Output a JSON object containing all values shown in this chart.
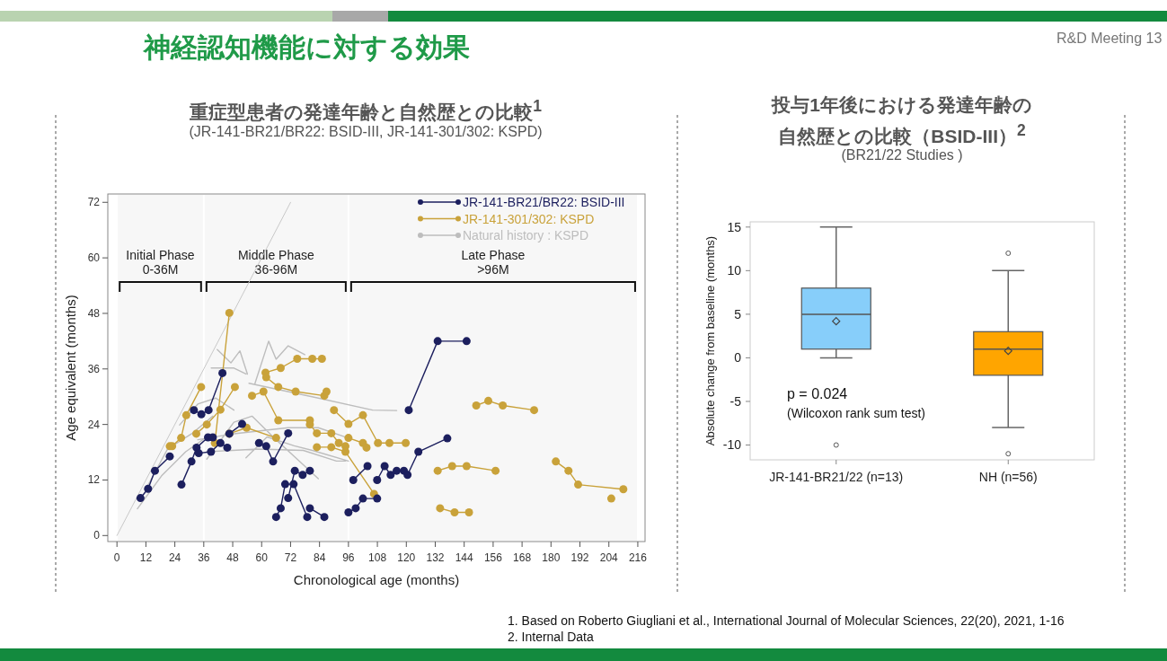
{
  "chart_data": [
    {
      "type": "line",
      "title": "重症型患者の発達年齢と自然歴との比較$^{1}$",
      "subtitle": "(JR-141-BR21/BR22: BSID-III, JR-141-301/302: KSPD)",
      "xlabel": "Chronological age (months)",
      "ylabel": "Age equivalent (months)",
      "xlim": [
        -3.8,
        219
      ],
      "ylim": [
        -1.3,
        73.8
      ],
      "xticks": [
        0,
        12,
        24,
        36,
        48,
        60,
        72,
        84,
        96,
        108,
        120,
        132,
        144,
        156,
        168,
        180,
        192,
        204,
        216
      ],
      "yticks": [
        0,
        12,
        24,
        36,
        48,
        60,
        72
      ],
      "grid": false,
      "legend": "top right",
      "marker": "circle",
      "series": [
        {
          "color": "#c8c8c8",
          "marker": "none",
          "x": [
            0,
            72
          ],
          "values": [
            0,
            72
          ]
        },
        {
          "name": "Natural history : KSPD",
          "color": "#bdbdbd",
          "marker": "none",
          "x": [
            37.25,
            48.5,
            56,
            66,
            83.5,
            null,
            41.6,
            47.25,
            51,
            54.1,
            null,
            39.1,
            48.5,
            53.5,
            null,
            57.25,
            62.9,
            66,
            71,
            77.9,
            null,
            54.75,
            83.5,
            106,
            116,
            null,
            33.5,
            48.5,
            71,
            83.5,
            94.75,
            null,
            37.25,
            58.5,
            77.25,
            91,
            94.75,
            null,
            26,
            33.5,
            41,
            48.5,
            null,
            12.25,
            21,
            31,
            39.75,
            null,
            8.5,
            18.5,
            28.5,
            37.25,
            null,
            53.5,
            62.25,
            73.5,
            81,
            96
          ],
          "values": [
            16.5,
            24.5,
            25.8,
            20.7,
            12.3,
            null,
            40.2,
            37.3,
            39.9,
            34.9,
            null,
            36.2,
            36.2,
            34.9,
            null,
            32.9,
            42.0,
            38.1,
            41.0,
            39.1,
            null,
            32.9,
            29.7,
            27.1,
            27.0,
            null,
            20.7,
            22.0,
            23.3,
            23.3,
            21.3,
            null,
            18.1,
            18.7,
            18.4,
            16.1,
            16.1,
            null,
            23.9,
            28.4,
            29.7,
            27.1,
            null,
            10.3,
            18.7,
            22.0,
            25.8,
            null,
            5.8,
            12.9,
            18.1,
            21.3,
            null,
            16.8,
            21.3,
            19.4,
            18.4,
            16.1
          ]
        },
        {
          "name": "JR-141-301/302: KSPD",
          "color": "#c9a23a",
          "x": [
            21.9,
            22.9,
            26.6,
            28.75,
            34.9,
            null,
            32.9,
            37.25,
            42.9,
            48.9,
            null,
            40.6,
            46.6,
            null,
            46.6,
            53.75,
            66,
            null,
            56,
            60.75,
            66.9,
            80,
            null,
            61.6,
            67.9,
            74.75,
            81,
            85,
            null,
            61.9,
            66.9,
            74.1,
            86,
            86.9,
            null,
            80,
            82.9,
            88.9,
            92,
            94.75,
            null,
            82.9,
            88.9,
            94.75,
            106.6,
            null,
            90,
            96,
            102,
            108.25,
            113,
            119.75,
            null,
            96,
            102,
            103.5,
            null,
            149,
            154,
            160,
            173,
            null,
            133,
            139,
            145,
            157,
            null,
            134,
            140,
            146,
            null,
            182,
            187.25,
            191.25,
            210,
            null,
            205
          ],
          "values": [
            19.3,
            19.3,
            21.1,
            26.0,
            32.1,
            null,
            22.0,
            24.0,
            27.2,
            32.1,
            null,
            20.0,
            48.1,
            null,
            22.0,
            23.3,
            21.1,
            null,
            30.2,
            31.1,
            24.9,
            24.9,
            null,
            35.2,
            36.2,
            38.2,
            38.2,
            38.2,
            null,
            34.2,
            32.1,
            31.1,
            30.2,
            31.1,
            null,
            24.0,
            22.1,
            22.1,
            20.0,
            19.3,
            null,
            19.1,
            19.1,
            18.1,
            9.0,
            null,
            27.1,
            24.1,
            26.0,
            20.0,
            20.0,
            20.0,
            null,
            21.1,
            20.0,
            19.0,
            null,
            28.1,
            29.1,
            28.1,
            27.1,
            null,
            14.0,
            15.0,
            15.0,
            14.0,
            null,
            5.9,
            5.0,
            5.0,
            null,
            16.0,
            14.0,
            11.0,
            10.0,
            null,
            8.0
          ]
        },
        {
          "name": "JR-141-BR21/BR22: BSID-III",
          "color": "#1c1f5e",
          "x": [
            9.75,
            12.9,
            15.75,
            21.9,
            null,
            26.75,
            30.9,
            33,
            37.75,
            39.75,
            null,
            31.9,
            35,
            38,
            43.75,
            null,
            33.9,
            39,
            42.9,
            45.75,
            null,
            46.6,
            51.9,
            null,
            58.9,
            61.9,
            64.75,
            71,
            null,
            66,
            67.9,
            69.75,
            73.25,
            78.9,
            null,
            71,
            73.75,
            77,
            80,
            null,
            80,
            86,
            null,
            96,
            99,
            102,
            107.9,
            null,
            98,
            103.9,
            null,
            107.9,
            111,
            113.5,
            116,
            119,
            null,
            120.5,
            125,
            137,
            null,
            121,
            133,
            145
          ],
          "values": [
            8.1,
            10.1,
            14.0,
            17.1,
            null,
            11.0,
            16.0,
            19.0,
            21.2,
            21.2,
            null,
            27.1,
            26.2,
            27.1,
            35.1,
            null,
            17.8,
            18.1,
            20.0,
            19.0,
            null,
            22.0,
            24.1,
            null,
            20.0,
            19.3,
            16.0,
            22.1,
            null,
            4.0,
            5.9,
            11.1,
            11.1,
            4.0,
            null,
            8.1,
            14.0,
            13.1,
            14.0,
            null,
            5.9,
            4.0,
            null,
            5.0,
            5.9,
            8.0,
            8.0,
            null,
            12.0,
            15.0,
            null,
            12.0,
            15.0,
            13.1,
            14.0,
            14.0,
            null,
            13.1,
            18.1,
            21.0,
            null,
            27.1,
            42.0,
            42.0
          ]
        }
      ],
      "bands": [
        {
          "axis": "x",
          "from": 0,
          "to": 36,
          "label": "Initial Phase 0-36M"
        },
        {
          "axis": "x",
          "from": 36,
          "to": 96,
          "label": "Middle Phase 36-96M"
        },
        {
          "axis": "x",
          "from": 96,
          "to": 216,
          "label": "Late Phase >96M"
        }
      ],
      "annotations": [
        "神経認知機能に対する効果",
        "R&D Meeting 13",
        "1. Based on Roberto Giugliani et al., International Journal of Molecular Sciences, 22(20), 2021, 1-16"
      ]
    },
    {
      "type": "box",
      "title": "投与1年後における発達年齢の自然歴との比較（BSID-III）$^{2}$",
      "subtitle": "(BR21/22 Studies )",
      "ylabel": "Absolute change from baseline (months)",
      "categories": [
        "JR-141-BR21/22 (n=13)",
        "NH (n=56)"
      ],
      "colors": [
        "#87cefa",
        "#ffa500"
      ],
      "ylim": [
        -11.7,
        15.6
      ],
      "yticks": [
        -10,
        -5,
        0,
        5,
        10,
        15
      ],
      "grid": false,
      "boxes": [
        {
          "low": 0,
          "q1": 1,
          "median": 5,
          "q3": 8,
          "high": 15,
          "mean": 4.2,
          "outliers": [
            -10
          ]
        },
        {
          "low": -8,
          "q1": -2,
          "median": 1,
          "q3": 3,
          "high": 10,
          "mean": 0.8,
          "outliers": [
            12,
            -11
          ]
        }
      ],
      "annotations": [
        "p = 0.024",
        "(Wilcoxon rank sum test)",
        "2. Internal Data"
      ]
    }
  ]
}
